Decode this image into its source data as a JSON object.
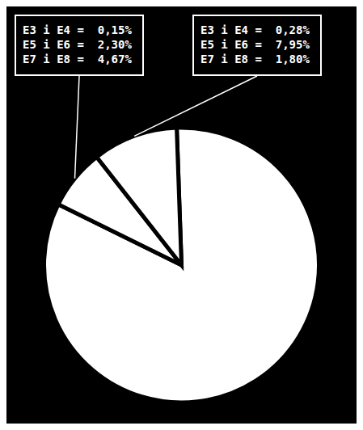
{
  "chart_data": {
    "type": "pie",
    "values": [
      82.85,
      7.12,
      10.03
    ],
    "colors": [
      "#ffffff",
      "#ffffff",
      "#ffffff"
    ],
    "annotations": [
      {
        "text": "E3 i E4 =  0,15%\nE5 i E6 =  2,30%\nE7 i E8 =  4,67%"
      },
      {
        "text": "E3 i E4 =  0,28%\nE5 i E6 =  7,95%\nE7 i E8 =  1,80%"
      }
    ]
  }
}
